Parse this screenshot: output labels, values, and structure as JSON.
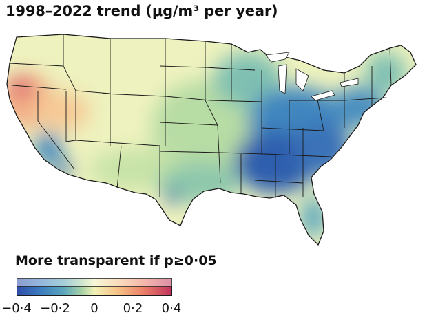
{
  "title": "1998–2022 trend (μg/m³ per year)",
  "legend": {
    "title": "More transparent if p≥0·05",
    "ticks": [
      "−0·4",
      "−0·2",
      "0",
      "0·2",
      "0·4"
    ],
    "colors": [
      "#2f4da8",
      "#3c7bbf",
      "#5aa5bd",
      "#a9d3a6",
      "#f1f1b6",
      "#f6c287",
      "#eb7e67",
      "#c0325e"
    ]
  },
  "map": {
    "region": "Contiguous United States",
    "colors": {
      "negative_strong": "#2f5fae",
      "negative": "#3f86bf",
      "slight_negative": "#7dbfb3",
      "near_zero": "#eaf0b5",
      "positive": "#f4b07a",
      "positive_strong": "#d9506a",
      "state_border": "#1a1a1a"
    }
  }
}
